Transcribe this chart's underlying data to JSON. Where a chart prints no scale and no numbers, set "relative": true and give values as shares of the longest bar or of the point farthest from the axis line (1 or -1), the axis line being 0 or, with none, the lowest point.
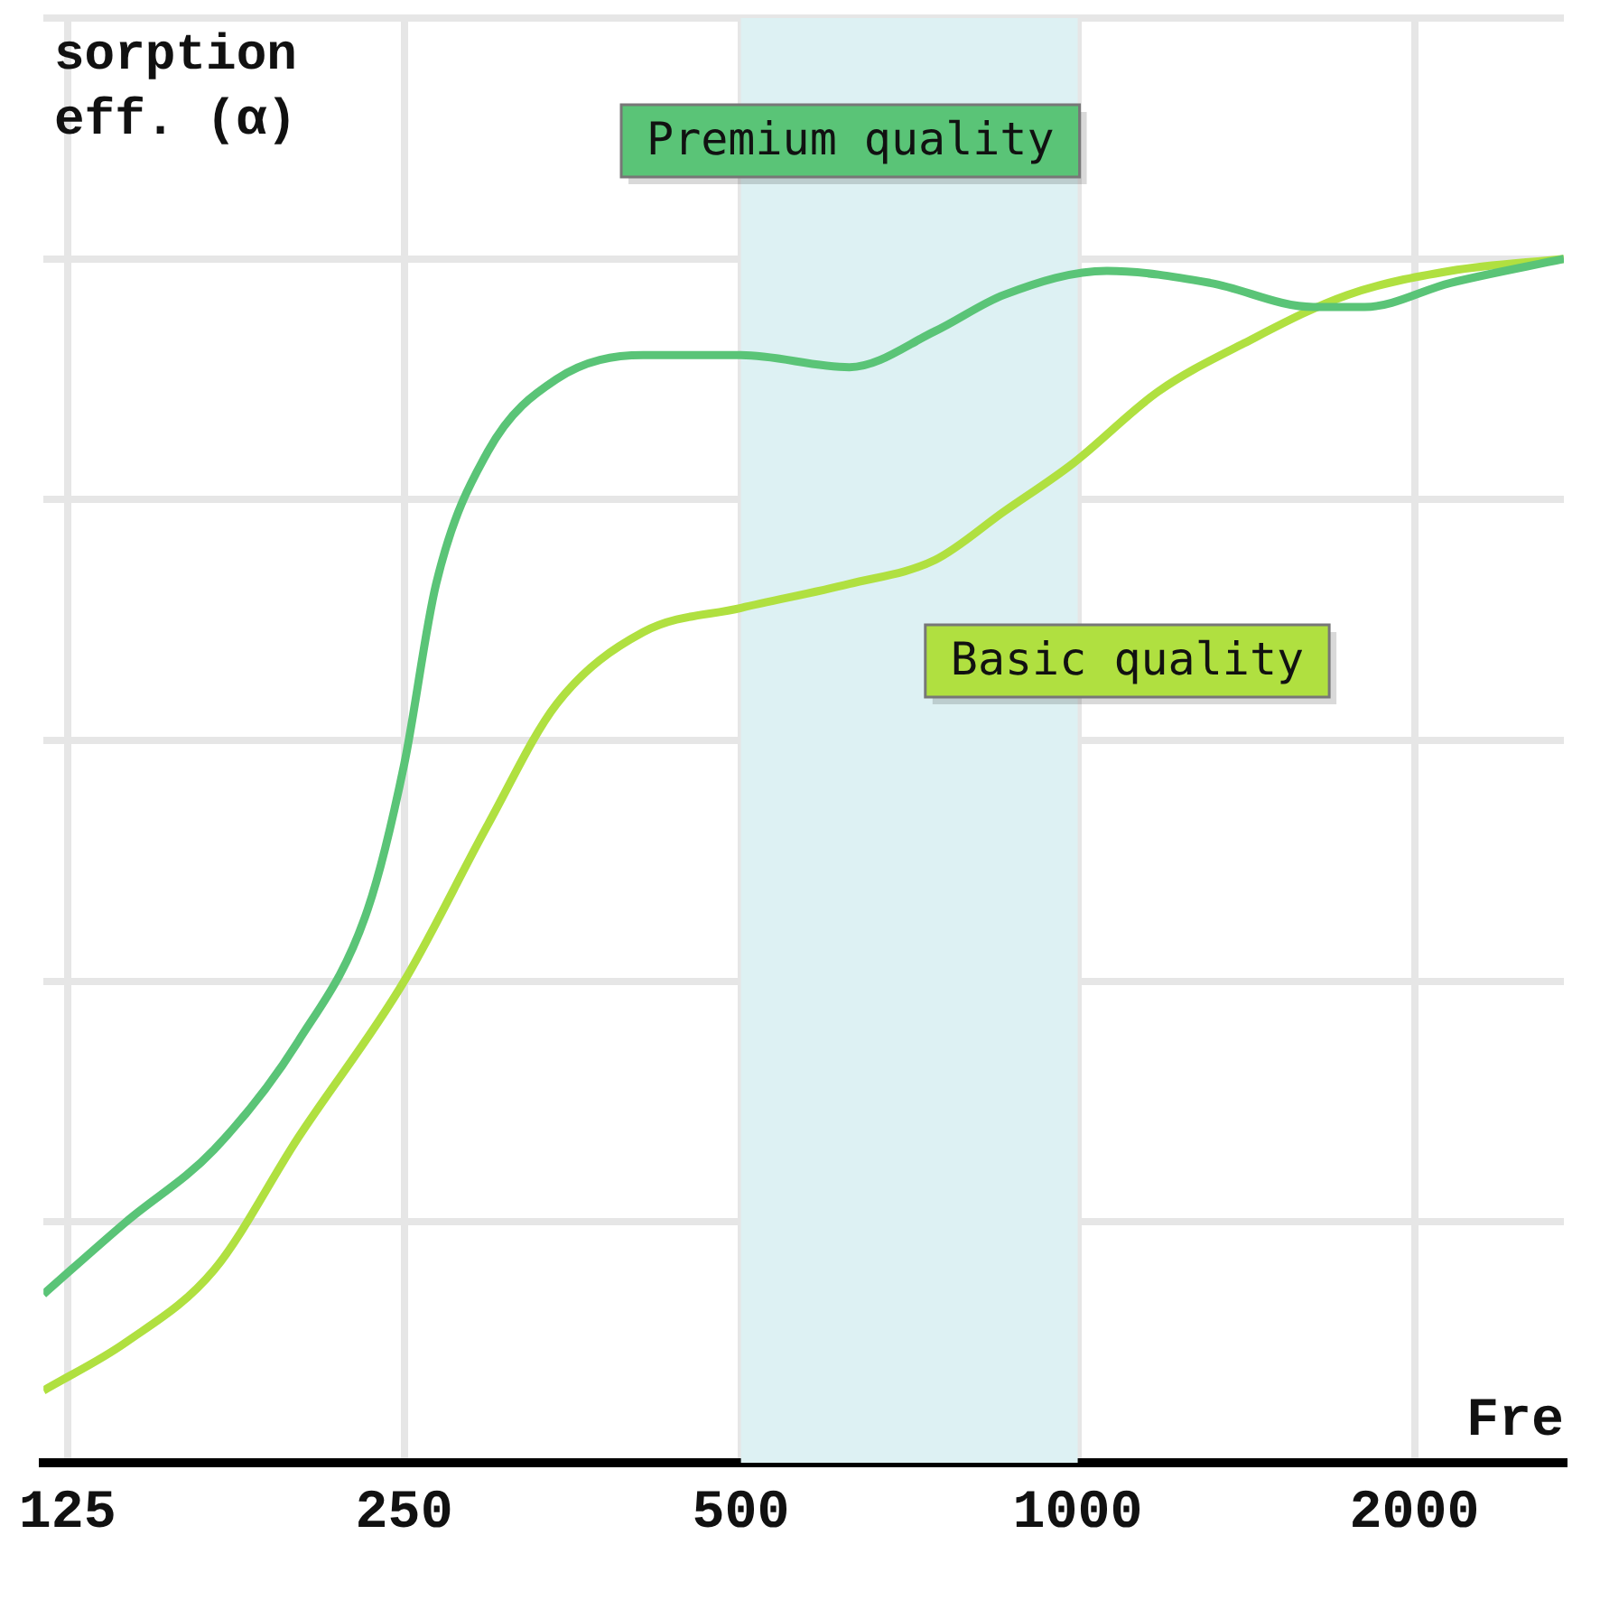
{
  "chart_data": {
    "type": "line",
    "ylabel": "sorption\neff. (α)",
    "xlabel": "Fre",
    "relative": true,
    "log": "x",
    "grid": true,
    "legend": false,
    "xlim": [
      119,
      2720
    ],
    "xticks": [
      125,
      250,
      500,
      1000,
      2000
    ],
    "bands": [
      {
        "axis": "x",
        "from": 500,
        "to": 1000,
        "color": "#ddf1f3"
      }
    ],
    "series": [
      {
        "name": "Premium quality",
        "color": "#5ac477",
        "x": [
          119,
          141,
          169,
          201,
          232,
          250,
          267,
          297,
          342,
          409,
          500,
          625,
          746,
          859,
          1062,
          1313,
          1624,
          1805,
          2154,
          2720
        ],
        "values": [
          0.14,
          0.2,
          0.26,
          0.35,
          0.46,
          0.58,
          0.73,
          0.84,
          0.9,
          0.92,
          0.92,
          0.91,
          0.94,
          0.97,
          0.99,
          0.98,
          0.96,
          0.96,
          0.98,
          1.0
        ]
      },
      {
        "name": "Basic quality",
        "color": "#b0e040",
        "x": [
          119,
          141,
          169,
          201,
          250,
          297,
          342,
          409,
          500,
          625,
          746,
          859,
          990,
          1181,
          1409,
          1742,
          2154,
          2720
        ],
        "values": [
          0.06,
          0.1,
          0.16,
          0.27,
          0.4,
          0.53,
          0.63,
          0.69,
          0.71,
          0.73,
          0.75,
          0.79,
          0.83,
          0.89,
          0.93,
          0.97,
          0.99,
          1.0
        ]
      }
    ]
  }
}
